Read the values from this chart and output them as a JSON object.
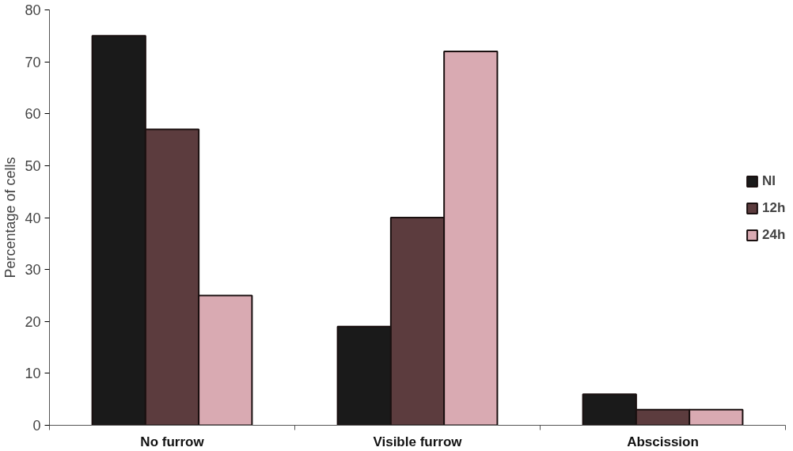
{
  "chart_data": {
    "type": "bar",
    "ylabel": "Percentage of cells",
    "categories": [
      "No furrow",
      "Visible furrow",
      "Abscission"
    ],
    "series": [
      {
        "name": "NI",
        "color": "#1a1a1a",
        "values": [
          75,
          19,
          6
        ]
      },
      {
        "name": "12h",
        "color": "#5c3c3e",
        "values": [
          57,
          40,
          3
        ]
      },
      {
        "name": "24h",
        "color": "#d9aab2",
        "values": [
          25,
          72,
          3
        ]
      }
    ],
    "ylim": [
      0,
      80
    ],
    "yticks": [
      0,
      10,
      20,
      30,
      40,
      50,
      60,
      70,
      80
    ],
    "grid": false,
    "legend": "right"
  }
}
